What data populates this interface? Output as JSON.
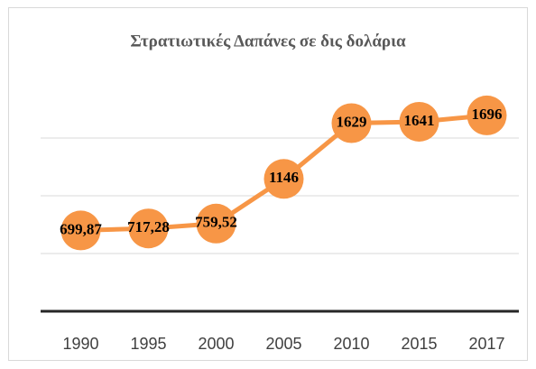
{
  "chart_data": {
    "type": "line",
    "title": "Στρατιωτικές Δαπάνες σε δις δολάρια",
    "categories": [
      "1990",
      "1995",
      "2000",
      "2005",
      "2010",
      "2015",
      "2017"
    ],
    "series": [
      {
        "color": "#f79646",
        "values": [
          699.87,
          717.28,
          759.52,
          1146,
          1629,
          1641,
          1696
        ],
        "value_labels": [
          "699,87",
          "717,28",
          "759,52",
          "1146",
          "1629",
          "1641",
          "1696"
        ]
      }
    ],
    "ylim": [
      0,
      2000
    ],
    "yticks": [
      0,
      500,
      1000,
      1500
    ],
    "grid": true
  }
}
